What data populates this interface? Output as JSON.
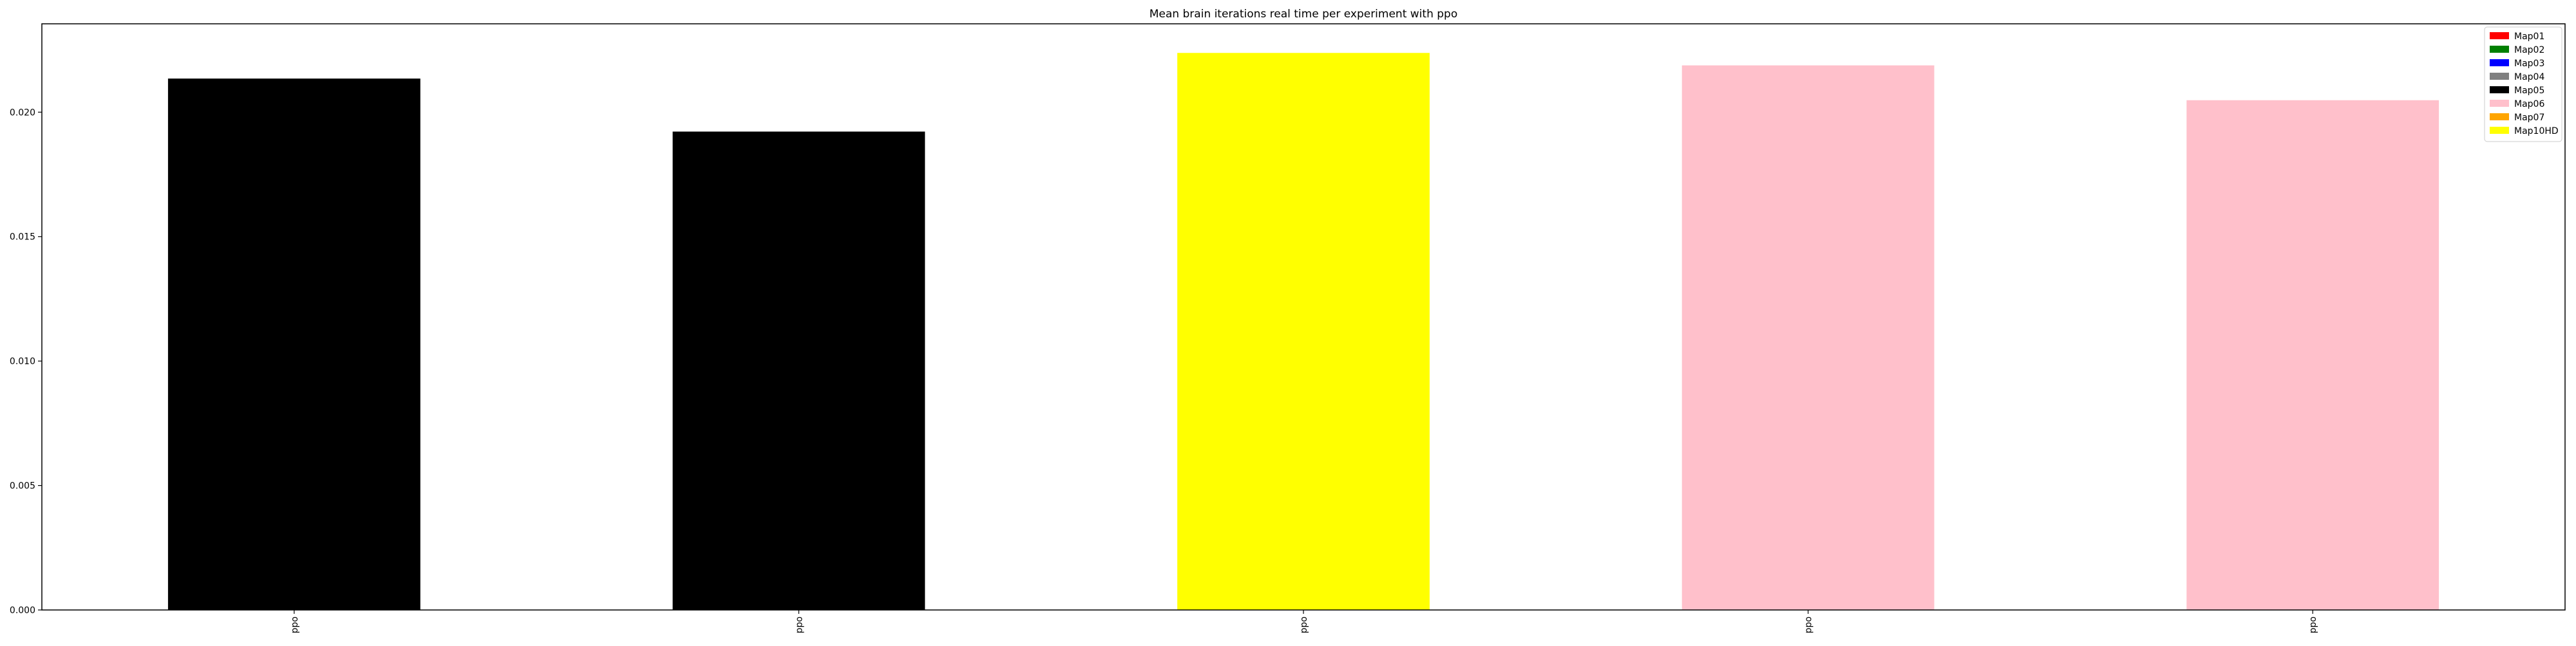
{
  "chart_data": {
    "type": "bar",
    "title": "Mean brain iterations real time per experiment with ppo",
    "xlabel": "",
    "ylabel": "",
    "categories": [
      "ppo",
      "ppo",
      "ppo",
      "ppo",
      "ppo"
    ],
    "values": [
      0.02135,
      0.01922,
      0.02238,
      0.02188,
      0.02048
    ],
    "bar_colors": [
      "#000000",
      "#000000",
      "#ffff00",
      "#ffc0cb",
      "#ffc0cb"
    ],
    "ylim": [
      0,
      0.02355
    ],
    "yticks": [
      0.0,
      0.005,
      0.01,
      0.015,
      0.02
    ],
    "ytick_labels": [
      "0.000",
      "0.005",
      "0.010",
      "0.015",
      "0.020"
    ],
    "grid": false,
    "legend_position": "top-right",
    "legend": [
      {
        "name": "Map01",
        "color": "#ff0000"
      },
      {
        "name": "Map02",
        "color": "#008000"
      },
      {
        "name": "Map03",
        "color": "#0000ff"
      },
      {
        "name": "Map04",
        "color": "#808080"
      },
      {
        "name": "Map05",
        "color": "#000000"
      },
      {
        "name": "Map06",
        "color": "#ffc0cb"
      },
      {
        "name": "Map07",
        "color": "#ffa500"
      },
      {
        "name": "Map10HD",
        "color": "#ffff00"
      }
    ]
  }
}
